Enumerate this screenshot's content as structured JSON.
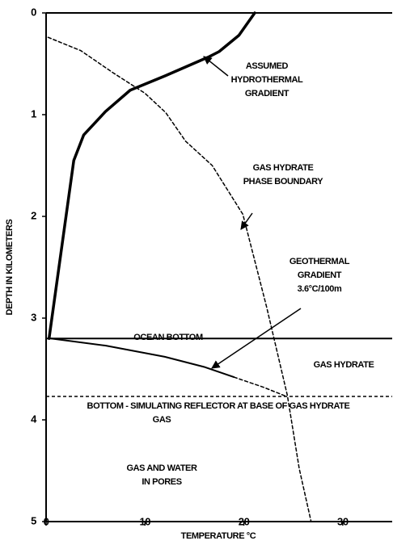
{
  "chart_data": {
    "type": "line",
    "xlabel": "TEMPERATURE °C",
    "ylabel": "DEPTH IN KILOMETERS",
    "xlim": [
      0,
      35
    ],
    "xticks": [
      0,
      10,
      20,
      30
    ],
    "ylim": [
      0,
      5
    ],
    "yticks": [
      0,
      1,
      2,
      3,
      4,
      5
    ],
    "y_inverted": true,
    "series": [
      {
        "color": "#000000",
        "width": 3.5,
        "dashed": false,
        "x": [
          21.1,
          19.5,
          17.5,
          16.5,
          12,
          8.5,
          6,
          3.8,
          2.8,
          0.3
        ],
        "values": [
          0,
          0.22,
          0.38,
          0.43,
          0.62,
          0.76,
          0.97,
          1.2,
          1.45,
          3.2
        ]
      },
      {
        "color": "#000000",
        "width": 1.5,
        "dashed": true,
        "x": [
          0.2,
          3.5,
          6.8,
          10,
          12.1,
          14.1,
          16.8,
          19.9,
          22.3,
          24.4,
          25.6,
          26.8
        ],
        "values": [
          0.24,
          0.37,
          0.59,
          0.79,
          0.98,
          1.26,
          1.5,
          1.98,
          2.89,
          3.76,
          4.48,
          5
        ]
      },
      {
        "color": "#000000",
        "width": 2,
        "dashed": false,
        "x": [
          0.5,
          6,
          12,
          16,
          19
        ],
        "values": [
          3.2,
          3.27,
          3.38,
          3.48,
          3.58
        ]
      },
      {
        "color": "#000000",
        "width": 1.5,
        "dashed": true,
        "x": [
          19,
          22,
          24.3
        ],
        "values": [
          3.58,
          3.68,
          3.77
        ]
      }
    ],
    "reference_lines": [
      {
        "value": 3.2,
        "label": "OCEAN BOTTOM",
        "dashed": false
      },
      {
        "value": 3.77,
        "label": "BOTTOM - SIMULATING REFLECTOR AT BASE OF GAS HYDRATE",
        "dashed": true
      }
    ],
    "annotations": [
      {
        "lines": [
          "ASSUMED",
          "HYDROTHERMAL",
          "GRADIENT"
        ]
      },
      {
        "lines": [
          "GAS HYDRATE",
          "PHASE BOUNDARY"
        ]
      },
      {
        "lines": [
          "GEOTHERMAL",
          "GRADIENT",
          "3.6°C/100m"
        ]
      },
      {
        "lines": [
          "GAS HYDRATE"
        ]
      },
      {
        "lines": [
          "GAS"
        ]
      },
      {
        "lines": [
          "GAS AND WATER",
          "IN PORES"
        ]
      }
    ]
  }
}
